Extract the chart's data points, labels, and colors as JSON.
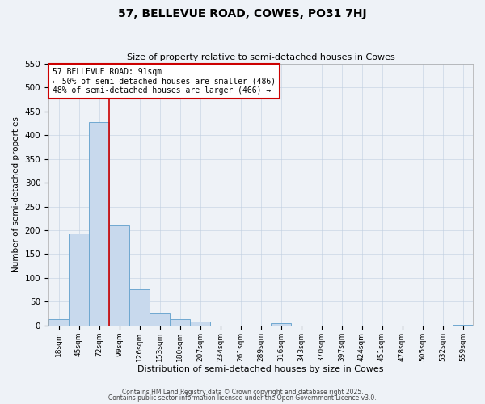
{
  "title": "57, BELLEVUE ROAD, COWES, PO31 7HJ",
  "subtitle": "Size of property relative to semi-detached houses in Cowes",
  "xlabel": "Distribution of semi-detached houses by size in Cowes",
  "ylabel": "Number of semi-detached properties",
  "bin_labels": [
    "18sqm",
    "45sqm",
    "72sqm",
    "99sqm",
    "126sqm",
    "153sqm",
    "180sqm",
    "207sqm",
    "234sqm",
    "261sqm",
    "289sqm",
    "316sqm",
    "343sqm",
    "370sqm",
    "397sqm",
    "424sqm",
    "451sqm",
    "478sqm",
    "505sqm",
    "532sqm",
    "559sqm"
  ],
  "bin_values": [
    13,
    193,
    428,
    211,
    76,
    27,
    13,
    8,
    0,
    0,
    0,
    5,
    0,
    0,
    0,
    0,
    0,
    0,
    0,
    0,
    2
  ],
  "bar_color": "#c8d9ed",
  "bar_edge_color": "#6fa8d0",
  "background_color": "#eef2f7",
  "vline_x_index": 3,
  "vline_color": "#cc0000",
  "annotation_title": "57 BELLEVUE ROAD: 91sqm",
  "annotation_line1": "← 50% of semi-detached houses are smaller (486)",
  "annotation_line2": "48% of semi-detached houses are larger (466) →",
  "annotation_box_facecolor": "#ffffff",
  "annotation_box_edgecolor": "#cc0000",
  "ylim": [
    0,
    550
  ],
  "yticks": [
    0,
    50,
    100,
    150,
    200,
    250,
    300,
    350,
    400,
    450,
    500,
    550
  ],
  "grid_color": "#c0cfe0",
  "footnote1": "Contains HM Land Registry data © Crown copyright and database right 2025.",
  "footnote2": "Contains public sector information licensed under the Open Government Licence v3.0."
}
